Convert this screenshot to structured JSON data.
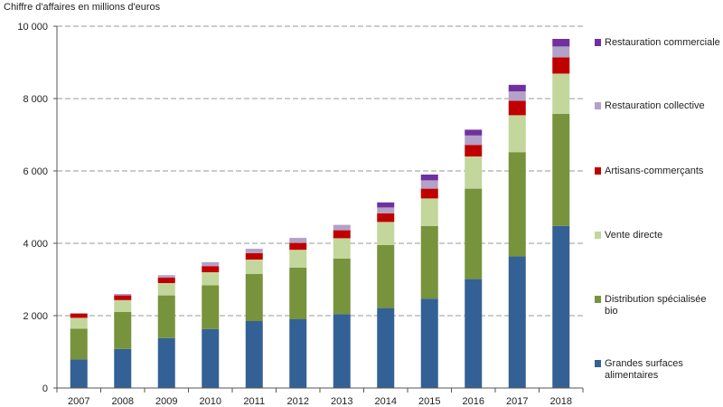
{
  "chart_data": {
    "type": "bar",
    "stacked": true,
    "ylabel": "Chiffre  d'affaires  en millions d'euros",
    "ylim": [
      0,
      10000
    ],
    "yticks": [
      0,
      2000,
      4000,
      6000,
      8000,
      10000
    ],
    "ytick_labels": [
      "0",
      "2 000",
      "4 000",
      "6 000",
      "8 000",
      "10 000"
    ],
    "grid": "horizontal dashed",
    "legend_position": "right",
    "categories": [
      "2007",
      "2008",
      "2009",
      "2010",
      "2011",
      "2012",
      "2013",
      "2014",
      "2015",
      "2016",
      "2017",
      "2018"
    ],
    "series": [
      {
        "name": "Grandes surfaces alimentaires",
        "color": "#336195",
        "values": [
          790,
          1080,
          1380,
          1630,
          1850,
          1900,
          2040,
          2210,
          2470,
          3010,
          3640,
          4480
        ]
      },
      {
        "name": "Distribution spécialisée bio",
        "color": "#77933c",
        "values": [
          850,
          1020,
          1180,
          1210,
          1300,
          1430,
          1540,
          1740,
          2010,
          2500,
          2880,
          3100
        ]
      },
      {
        "name": "Vente directe",
        "color": "#c3d69b",
        "values": [
          300,
          330,
          340,
          360,
          400,
          490,
          560,
          640,
          760,
          890,
          1020,
          1110
        ]
      },
      {
        "name": "Artisans-commerçants",
        "color": "#c00000",
        "values": [
          120,
          130,
          150,
          170,
          180,
          190,
          220,
          240,
          270,
          320,
          400,
          450
        ]
      },
      {
        "name": "Restauration collective",
        "color": "#b3a2c7",
        "values": [
          0,
          40,
          70,
          110,
          120,
          140,
          150,
          160,
          230,
          260,
          260,
          300
        ]
      },
      {
        "name": "Restauration commerciale",
        "color": "#7030a0",
        "values": [
          0,
          0,
          0,
          0,
          0,
          0,
          0,
          140,
          160,
          160,
          180,
          210
        ]
      }
    ]
  }
}
